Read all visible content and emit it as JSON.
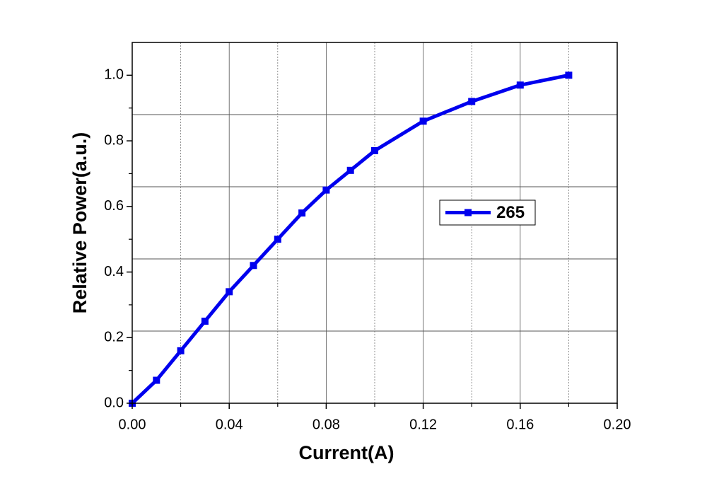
{
  "chart_data": {
    "type": "line",
    "x_label": "Current(A)",
    "y_label": "Relative Power(a.u.)",
    "x": [
      0,
      0.01,
      0.02,
      0.03,
      0.04,
      0.05,
      0.06,
      0.07,
      0.08,
      0.09,
      0.1,
      0.12,
      0.14,
      0.16,
      0.18
    ],
    "series": [
      {
        "name": "265",
        "color": "#0000ee",
        "values": [
          0,
          0.07,
          0.16,
          0.25,
          0.34,
          0.42,
          0.5,
          0.58,
          0.65,
          0.71,
          0.77,
          0.86,
          0.92,
          0.97,
          1.0
        ]
      }
    ],
    "xlim": [
      0,
      0.2
    ],
    "ylim": [
      0,
      1.1
    ],
    "xticks": [
      {
        "value": 0,
        "label": "0.00"
      },
      {
        "value": 0.04,
        "label": "0.04"
      },
      {
        "value": 0.08,
        "label": "0.08"
      },
      {
        "value": 0.12,
        "label": "0.12"
      },
      {
        "value": 0.16,
        "label": "0.16"
      },
      {
        "value": 0.2,
        "label": "0.20"
      }
    ],
    "yticks": [
      {
        "value": 0,
        "label": "0.0"
      },
      {
        "value": 0.2,
        "label": "0.2"
      },
      {
        "value": 0.4,
        "label": "0.4"
      },
      {
        "value": 0.6,
        "label": "0.6"
      },
      {
        "value": 0.8,
        "label": "0.8"
      },
      {
        "value": 1.0,
        "label": "1.0"
      }
    ],
    "ygrid": [
      0.22,
      0.44,
      0.66,
      0.88
    ],
    "grid": true,
    "legend": "right"
  }
}
